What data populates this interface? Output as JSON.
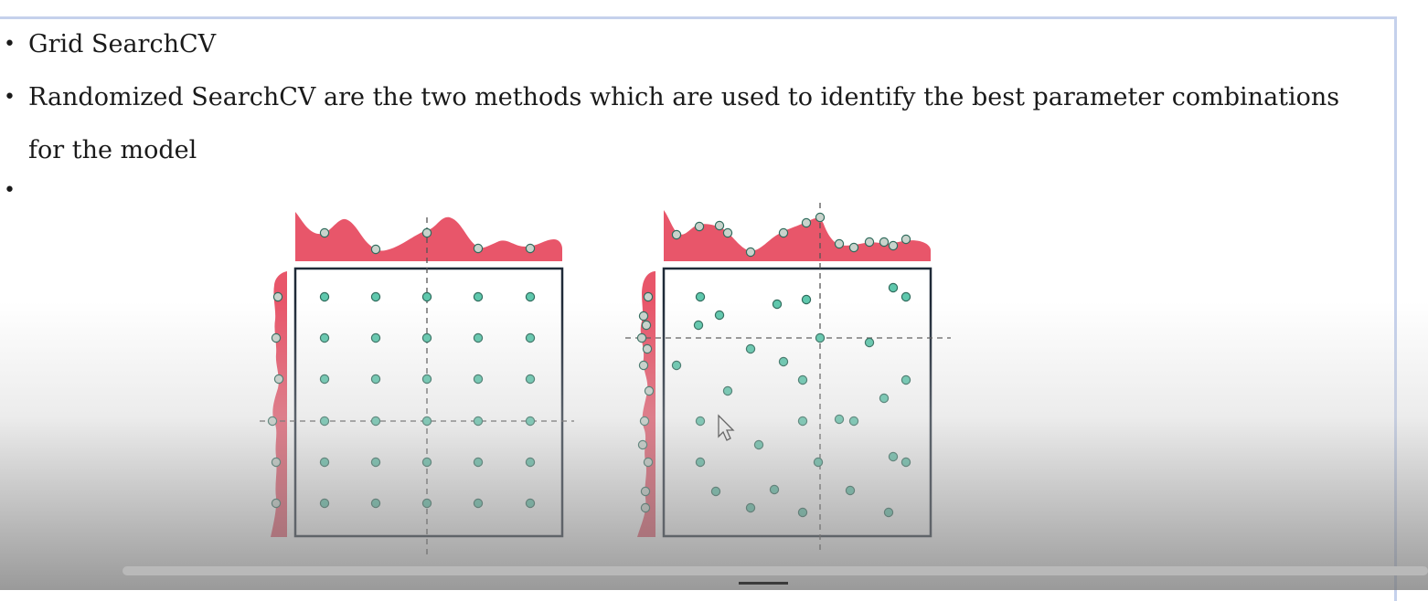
{
  "bullets": {
    "item1": "Grid SearchCV",
    "item2_line1": "Randomized SearchCV are the two methods which are used to identify the best parameter combinations",
    "item2_line2": "for the model",
    "bullet_glyph": "•"
  },
  "colors": {
    "density": "#e8566a",
    "point_fill": "#5fc8ad",
    "point_stroke": "#2f6b5c",
    "margin_point_fill": "#c9d3cc",
    "box_stroke": "#1f2a38",
    "frame": "#c5d1ec"
  },
  "icons": [
    "cursor-arrow-icon"
  ]
}
